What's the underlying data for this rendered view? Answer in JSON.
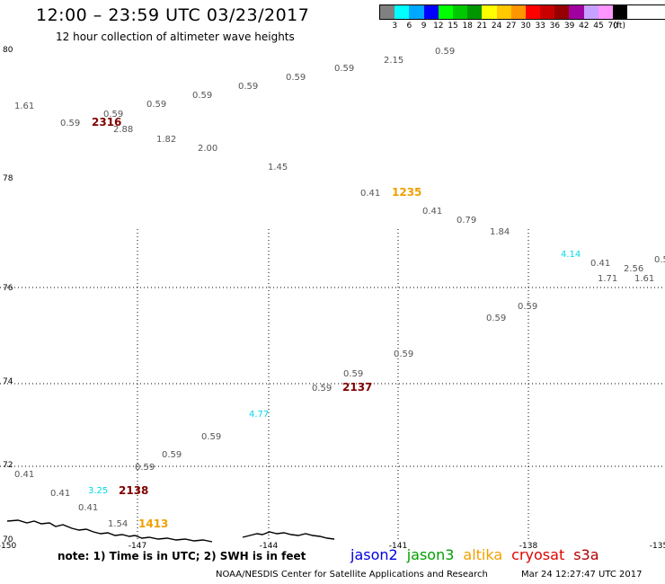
{
  "header": {
    "title": "12:00 – 23:59 UTC 03/23/2017",
    "subtitle": "12 hour collection of altimeter wave heights"
  },
  "legend": {
    "colors": [
      "#808080",
      "#00ffff",
      "#00a8ff",
      "#0000ff",
      "#00ff00",
      "#00c800",
      "#009600",
      "#ffff00",
      "#ffc800",
      "#ff9600",
      "#ff0000",
      "#c80000",
      "#960000",
      "#a000a0",
      "#c8a0ff",
      "#ff96ff",
      "#000000"
    ],
    "labels": [
      "3",
      "6",
      "9",
      "12",
      "15",
      "18",
      "21",
      "24",
      "27",
      "30",
      "33",
      "36",
      "39",
      "42",
      "45",
      "70",
      "(ft)"
    ]
  },
  "note": "note:  1)  Time is in UTC;  2)  SWH is in feet",
  "satellites": [
    {
      "name": "jason2",
      "color": "#0000e0"
    },
    {
      "name": "jason3",
      "color": "#00a000"
    },
    {
      "name": "altika",
      "color": "#f0a000"
    },
    {
      "name": "cryosat",
      "color": "#e00000"
    },
    {
      "name": "s3a",
      "color": "#b00000"
    }
  ],
  "footer": {
    "credit": "NOAA/NESDIS Center for Satellite Applications and Research",
    "generated": "Mar 24 12:27:47 UTC 2017"
  },
  "axes": {
    "lat_ticks": [
      {
        "label": "80"
      },
      {
        "label": "78"
      },
      {
        "label": "76"
      },
      {
        "label": "74"
      },
      {
        "label": "72"
      },
      {
        "label": "70"
      }
    ],
    "lon_ticks": [
      {
        "label": "-150"
      },
      {
        "label": "-147"
      },
      {
        "label": "-144"
      },
      {
        "label": "-141"
      },
      {
        "label": "-138"
      },
      {
        "label": "-135"
      }
    ]
  },
  "observations": [
    {
      "v": "1.61",
      "c": "gray"
    },
    {
      "v": "0.59",
      "c": "gray"
    },
    {
      "v": "0.59",
      "c": "gray"
    },
    {
      "v": "2.88",
      "c": "gray"
    },
    {
      "v": "0.59",
      "c": "gray"
    },
    {
      "v": "1.82",
      "c": "gray"
    },
    {
      "v": "0.59",
      "c": "gray"
    },
    {
      "v": "2.00",
      "c": "gray"
    },
    {
      "v": "0.59",
      "c": "gray"
    },
    {
      "v": "1.45",
      "c": "gray"
    },
    {
      "v": "0.59",
      "c": "gray"
    },
    {
      "v": "0.59",
      "c": "gray"
    },
    {
      "v": "2.15",
      "c": "gray"
    },
    {
      "v": "0.59",
      "c": "gray"
    },
    {
      "v": "0.41",
      "c": "gray"
    },
    {
      "v": "0.41",
      "c": "gray"
    },
    {
      "v": "0.79",
      "c": "gray"
    },
    {
      "v": "1.84",
      "c": "gray"
    },
    {
      "v": "4.14",
      "c": "cyan"
    },
    {
      "v": "0.41",
      "c": "gray"
    },
    {
      "v": "2.56",
      "c": "gray"
    },
    {
      "v": "1.71",
      "c": "gray"
    },
    {
      "v": "1.61",
      "c": "gray"
    },
    {
      "v": "0.5",
      "c": "gray"
    },
    {
      "v": "0.59",
      "c": "gray"
    },
    {
      "v": "0.59",
      "c": "gray"
    },
    {
      "v": "0.59",
      "c": "gray"
    },
    {
      "v": "0.59",
      "c": "gray"
    },
    {
      "v": "0.59",
      "c": "gray"
    },
    {
      "v": "4.77",
      "c": "cyan"
    },
    {
      "v": "0.59",
      "c": "gray"
    },
    {
      "v": "0.59",
      "c": "gray"
    },
    {
      "v": "0.59",
      "c": "gray"
    },
    {
      "v": "0.41",
      "c": "gray"
    },
    {
      "v": "0.41",
      "c": "gray"
    },
    {
      "v": "3.25",
      "c": "cyan"
    },
    {
      "v": "0.41",
      "c": "gray"
    },
    {
      "v": "1.54",
      "c": "gray"
    }
  ],
  "time_labels": [
    {
      "v": "2316",
      "c": "dark"
    },
    {
      "v": "1235",
      "c": "orange"
    },
    {
      "v": "2137",
      "c": "dark"
    },
    {
      "v": "2138",
      "c": "dark"
    },
    {
      "v": "1413",
      "c": "orange"
    }
  ]
}
